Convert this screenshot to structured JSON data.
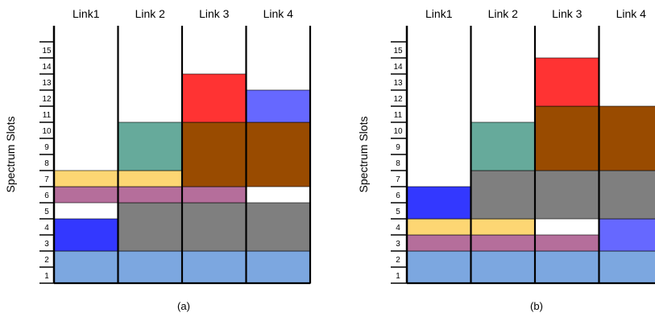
{
  "figure": {
    "y_label": "Spectrum Slots",
    "slot_labels": [
      "1",
      "2",
      "3",
      "4",
      "5",
      "6",
      "7",
      "8",
      "9",
      "10",
      "11",
      "12",
      "13",
      "14",
      "15"
    ],
    "link_labels": [
      "Link1",
      "Link 2",
      "Link 3",
      "Link 4"
    ],
    "colors": {
      "light_blue": "#7ca7e0",
      "blue": "#3338ff",
      "periwinkle": "#6668ff",
      "mauve": "#b56e9b",
      "yellow": "#fdd673",
      "gray": "#7f7f7f",
      "teal": "#66aa9b",
      "brown": "#994b00",
      "red": "#ff3333"
    },
    "panels": [
      {
        "caption": "(a)",
        "blocks": [
          {
            "link": 1,
            "from": 1,
            "to": 2,
            "color": "light_blue"
          },
          {
            "link": 1,
            "from": 3,
            "to": 4,
            "color": "blue"
          },
          {
            "link": 1,
            "from": 6,
            "to": 6,
            "color": "mauve"
          },
          {
            "link": 1,
            "from": 7,
            "to": 7,
            "color": "yellow"
          },
          {
            "link": 2,
            "from": 1,
            "to": 2,
            "color": "light_blue"
          },
          {
            "link": 2,
            "from": 3,
            "to": 5,
            "color": "gray"
          },
          {
            "link": 2,
            "from": 6,
            "to": 6,
            "color": "mauve"
          },
          {
            "link": 2,
            "from": 7,
            "to": 7,
            "color": "yellow"
          },
          {
            "link": 2,
            "from": 8,
            "to": 10,
            "color": "teal"
          },
          {
            "link": 3,
            "from": 1,
            "to": 2,
            "color": "light_blue"
          },
          {
            "link": 3,
            "from": 3,
            "to": 5,
            "color": "gray"
          },
          {
            "link": 3,
            "from": 6,
            "to": 6,
            "color": "mauve"
          },
          {
            "link": 3,
            "from": 7,
            "to": 10,
            "color": "brown"
          },
          {
            "link": 3,
            "from": 11,
            "to": 13,
            "color": "red"
          },
          {
            "link": 4,
            "from": 1,
            "to": 2,
            "color": "light_blue"
          },
          {
            "link": 4,
            "from": 3,
            "to": 5,
            "color": "gray"
          },
          {
            "link": 4,
            "from": 7,
            "to": 10,
            "color": "brown"
          },
          {
            "link": 4,
            "from": 11,
            "to": 12,
            "color": "periwinkle"
          }
        ]
      },
      {
        "caption": "(b)",
        "blocks": [
          {
            "link": 1,
            "from": 1,
            "to": 2,
            "color": "light_blue"
          },
          {
            "link": 1,
            "from": 3,
            "to": 3,
            "color": "mauve"
          },
          {
            "link": 1,
            "from": 4,
            "to": 4,
            "color": "yellow"
          },
          {
            "link": 1,
            "from": 5,
            "to": 6,
            "color": "blue"
          },
          {
            "link": 2,
            "from": 1,
            "to": 2,
            "color": "light_blue"
          },
          {
            "link": 2,
            "from": 3,
            "to": 3,
            "color": "mauve"
          },
          {
            "link": 2,
            "from": 4,
            "to": 4,
            "color": "yellow"
          },
          {
            "link": 2,
            "from": 5,
            "to": 7,
            "color": "gray"
          },
          {
            "link": 2,
            "from": 8,
            "to": 10,
            "color": "teal"
          },
          {
            "link": 3,
            "from": 1,
            "to": 2,
            "color": "light_blue"
          },
          {
            "link": 3,
            "from": 3,
            "to": 3,
            "color": "mauve"
          },
          {
            "link": 3,
            "from": 5,
            "to": 7,
            "color": "gray"
          },
          {
            "link": 3,
            "from": 8,
            "to": 11,
            "color": "brown"
          },
          {
            "link": 3,
            "from": 12,
            "to": 14,
            "color": "red"
          },
          {
            "link": 4,
            "from": 1,
            "to": 2,
            "color": "light_blue"
          },
          {
            "link": 4,
            "from": 3,
            "to": 4,
            "color": "periwinkle"
          },
          {
            "link": 4,
            "from": 5,
            "to": 7,
            "color": "gray"
          },
          {
            "link": 4,
            "from": 8,
            "to": 11,
            "color": "brown"
          }
        ]
      }
    ]
  }
}
